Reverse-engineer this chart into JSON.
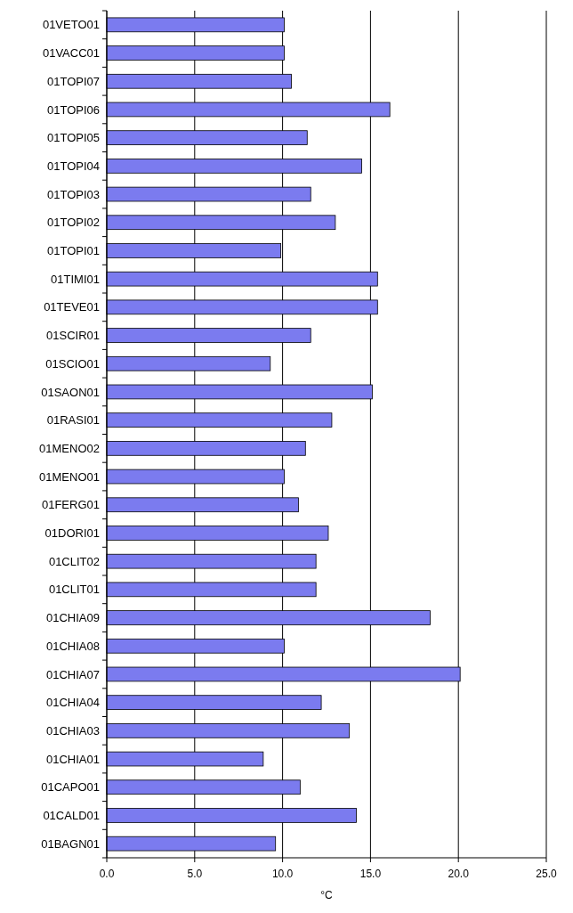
{
  "chart_data": {
    "type": "bar",
    "orientation": "horizontal",
    "xlabel": "°C",
    "categories": [
      "01VETO01",
      "01VACC01",
      "01TOPI07",
      "01TOPI06",
      "01TOPI05",
      "01TOPI04",
      "01TOPI03",
      "01TOPI02",
      "01TOPI01",
      "01TIMI01",
      "01TEVE01",
      "01SCIR01",
      "01SCIO01",
      "01SAON01",
      "01RASI01",
      "01MENO02",
      "01MENO01",
      "01FERG01",
      "01DORI01",
      "01CLIT02",
      "01CLIT01",
      "01CHIA09",
      "01CHIA08",
      "01CHIA07",
      "01CHIA04",
      "01CHIA03",
      "01CHIA01",
      "01CAPO01",
      "01CALD01",
      "01BAGN01"
    ],
    "values": [
      10.1,
      10.1,
      10.5,
      16.1,
      11.4,
      14.5,
      11.6,
      13.0,
      9.9,
      15.4,
      15.4,
      11.6,
      9.3,
      15.1,
      12.8,
      11.3,
      10.1,
      10.9,
      12.6,
      11.9,
      11.9,
      18.4,
      10.1,
      20.1,
      12.2,
      13.8,
      8.9,
      11.0,
      14.2,
      9.6
    ],
    "color": "#7b7bef",
    "xlim": [
      0,
      25
    ],
    "xticks": [
      {
        "value": 0,
        "label": "0.0"
      },
      {
        "value": 5,
        "label": "5.0"
      },
      {
        "value": 10,
        "label": "10.0"
      },
      {
        "value": 15,
        "label": "15.0"
      },
      {
        "value": 20,
        "label": "20.0"
      },
      {
        "value": 25,
        "label": "25.0"
      }
    ],
    "grid": "x"
  }
}
